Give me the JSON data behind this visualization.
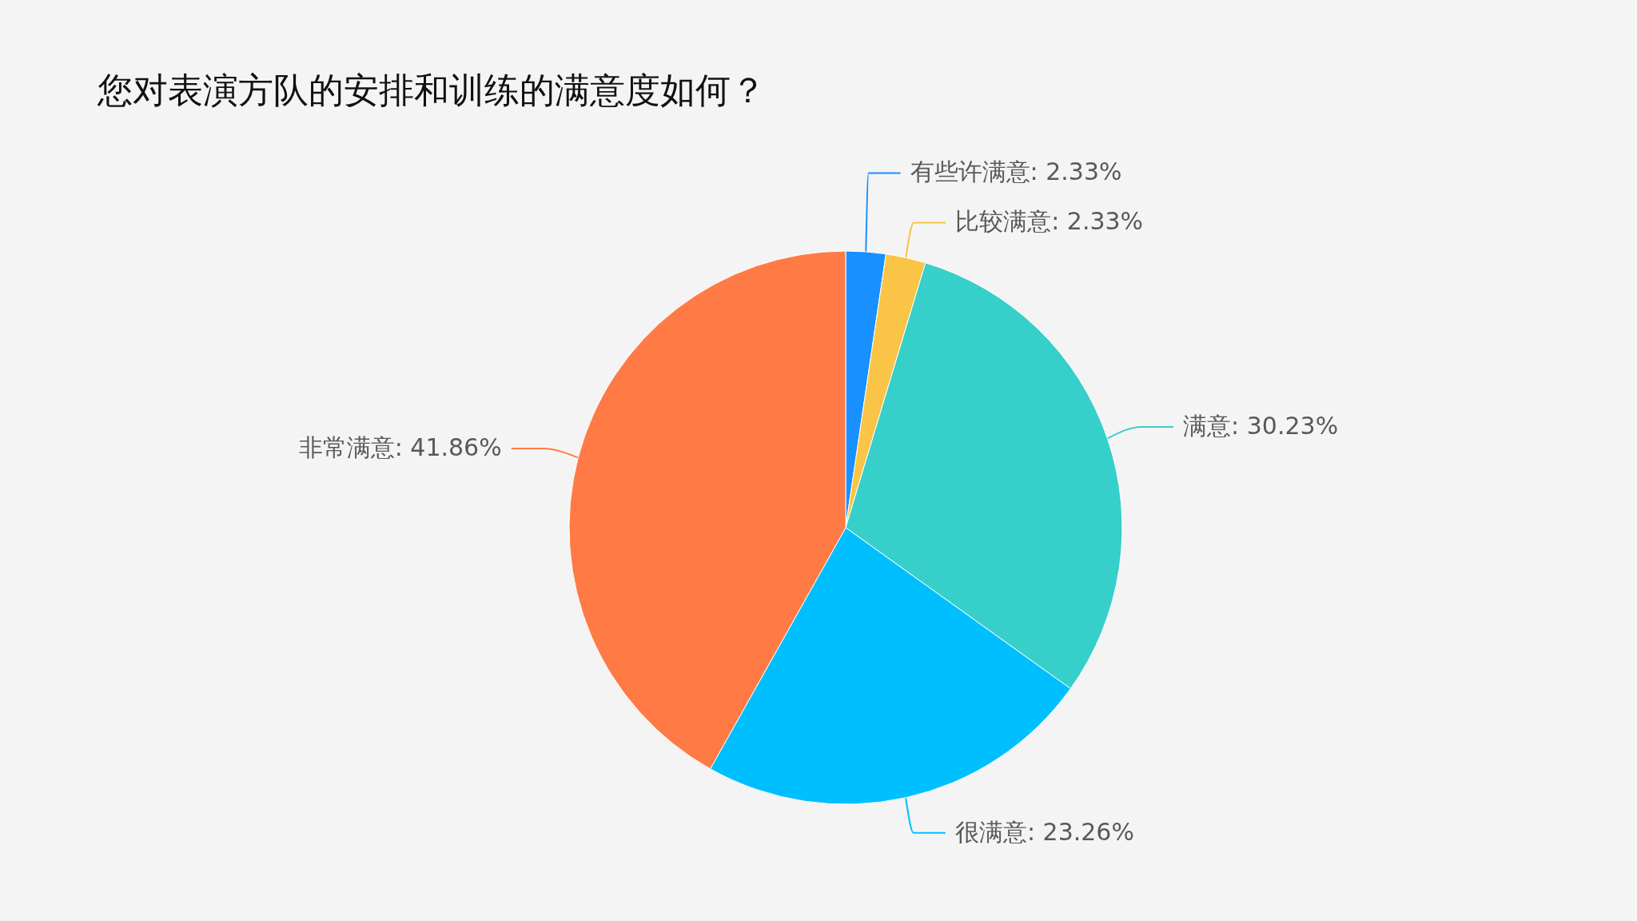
{
  "chart_data": {
    "type": "pie",
    "title": "您对表演方队的安排和训练的满意度如何？",
    "categories": [
      "有些许满意",
      "比较满意",
      "满意",
      "很满意",
      "非常满意"
    ],
    "values": [
      2.33,
      2.33,
      30.23,
      23.26,
      41.86
    ],
    "colors": [
      "#1890ff",
      "#fac446",
      "#36cfc9",
      "#00bfff",
      "#ff7a45"
    ],
    "value_labels": [
      "2.33%",
      "2.33%",
      "30.23%",
      "23.26%",
      "41.86%"
    ]
  }
}
